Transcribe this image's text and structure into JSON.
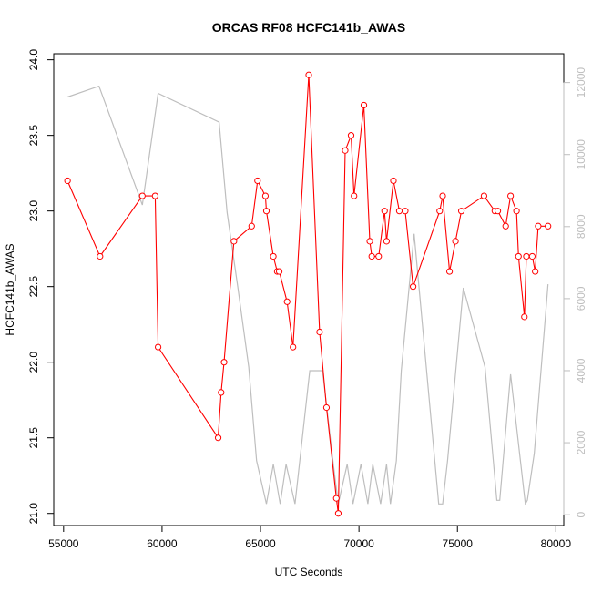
{
  "chart_data": {
    "type": "line",
    "title": "ORCAS RF08 HCFC141b_AWAS",
    "xlabel": "UTC Seconds",
    "ylabel": "HCFC141b_AWAS",
    "xlim": [
      54500,
      80400
    ],
    "ylim": [
      20.92,
      24.04
    ],
    "y2lim": [
      -300,
      12800
    ],
    "xticks": [
      55000,
      60000,
      65000,
      70000,
      75000,
      80000
    ],
    "yticks": [
      21.0,
      21.5,
      22.0,
      22.5,
      23.0,
      23.5,
      24.0
    ],
    "y2ticks": [
      0,
      2000,
      4000,
      6000,
      8000,
      10000,
      12000
    ],
    "grid": false,
    "colors": {
      "series": "#ff0000",
      "altitude": "#bebebe",
      "axis": "#000000"
    },
    "series": [
      {
        "values_x": [
          55200,
          56850,
          59000,
          59650,
          59800,
          62850,
          63000,
          63150,
          63650,
          64550,
          64850,
          65250,
          65300,
          65650,
          65850,
          65950,
          66350,
          66650,
          67450,
          68000,
          68350,
          68850,
          68950,
          69300,
          69600,
          69750,
          70250,
          70550,
          70650,
          71000,
          71300,
          71400,
          71750,
          72050,
          72350,
          72750,
          74100,
          74250,
          74600,
          74900,
          75200,
          76350,
          76900,
          77050,
          77450,
          77700,
          78000,
          78100,
          78400,
          78500,
          78800,
          78950,
          79100,
          79600
        ],
        "values_y": [
          23.2,
          22.7,
          23.1,
          23.1,
          22.1,
          21.5,
          21.8,
          22.0,
          22.8,
          22.9,
          23.2,
          23.1,
          23.0,
          22.7,
          22.6,
          22.6,
          22.4,
          22.1,
          23.9,
          22.2,
          21.7,
          21.1,
          21.0,
          23.4,
          23.5,
          23.1,
          23.7,
          22.8,
          22.7,
          22.7,
          23.0,
          22.8,
          23.2,
          23.0,
          23.0,
          22.5,
          23.0,
          23.1,
          22.6,
          22.8,
          23.0,
          23.1,
          23.0,
          23.0,
          22.9,
          23.1,
          23.0,
          22.7,
          22.3,
          22.7,
          22.7,
          22.6,
          22.9,
          22.9
        ]
      },
      {
        "axis": "right",
        "values_x": [
          55200,
          56800,
          59000,
          59800,
          62900,
          63300,
          63850,
          64400,
          64800,
          65300,
          65650,
          66000,
          66300,
          66750,
          67500,
          68150,
          68700,
          68950,
          69400,
          69700,
          70100,
          70450,
          70700,
          71100,
          71400,
          71600,
          71900,
          72150,
          72800,
          74050,
          74250,
          74500,
          75300,
          76400,
          77000,
          77150,
          77700,
          78450,
          78550,
          78900,
          79600
        ],
        "values_y": [
          11600,
          11900,
          8600,
          11700,
          10900,
          8400,
          6300,
          4100,
          1500,
          300,
          1400,
          300,
          1400,
          300,
          4000,
          4000,
          1400,
          300,
          1400,
          300,
          1400,
          300,
          1400,
          300,
          1400,
          300,
          1500,
          4000,
          7800,
          300,
          300,
          1500,
          6300,
          4100,
          400,
          400,
          3900,
          300,
          400,
          1700,
          6400
        ]
      }
    ]
  }
}
